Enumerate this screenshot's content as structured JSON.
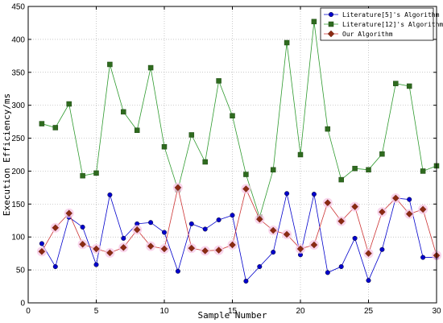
{
  "chart_data": {
    "type": "line",
    "title": "",
    "xlabel": "Sample Number",
    "ylabel": "Execution Efficiency/ms",
    "xlim": [
      0,
      30
    ],
    "ylim": [
      0,
      450
    ],
    "xticks": [
      0,
      5,
      10,
      15,
      20,
      25,
      30
    ],
    "yticks": [
      0,
      50,
      100,
      150,
      200,
      250,
      300,
      350,
      400,
      450
    ],
    "grid": true,
    "legend_position": "top-right",
    "x": [
      1,
      2,
      3,
      4,
      5,
      6,
      7,
      8,
      9,
      10,
      11,
      12,
      13,
      14,
      15,
      16,
      17,
      18,
      19,
      20,
      21,
      22,
      23,
      24,
      25,
      26,
      27,
      28,
      29,
      30
    ],
    "series": [
      {
        "name": "Literature[5]'s Algorithm",
        "color": "#0000cc",
        "marker": "circle",
        "values": [
          90,
          55,
          130,
          115,
          58,
          164,
          98,
          120,
          122,
          107,
          48,
          120,
          112,
          126,
          133,
          33,
          55,
          77,
          166,
          73,
          165,
          46,
          55,
          98,
          34,
          81,
          159,
          157,
          69,
          69
        ]
      },
      {
        "name": "Literature[12]'s Algorithm",
        "color": "#2e9a2e",
        "marker": "square",
        "values": [
          272,
          266,
          302,
          193,
          197,
          362,
          290,
          262,
          357,
          237,
          172,
          255,
          214,
          337,
          284,
          195,
          130,
          202,
          395,
          225,
          427,
          264,
          187,
          204,
          202,
          226,
          333,
          329,
          200,
          208
        ]
      },
      {
        "name": "Our Algorithm",
        "color": "#cc3333",
        "marker": "diamond",
        "values": [
          78,
          114,
          136,
          89,
          82,
          76,
          84,
          111,
          86,
          82,
          175,
          83,
          79,
          80,
          88,
          173,
          127,
          110,
          104,
          82,
          88,
          152,
          124,
          146,
          75,
          138,
          159,
          135,
          142,
          72
        ]
      }
    ]
  }
}
